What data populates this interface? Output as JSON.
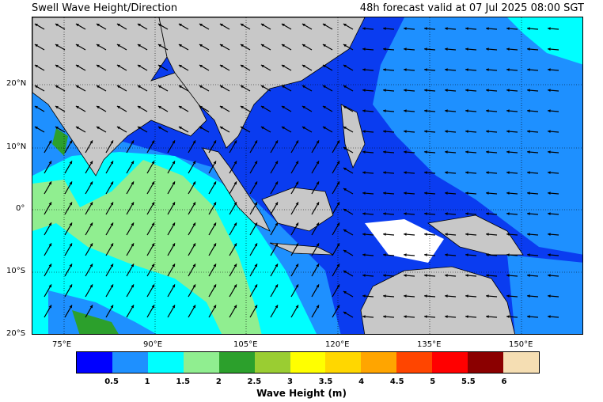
{
  "title_left": "Swell Wave Height/Direction",
  "title_right": "48h forecast valid at 07 Jul 2025 08:00 SGT",
  "map": {
    "lon_ticks": [
      "75°E",
      "90°E",
      "105°E",
      "120°E",
      "135°E",
      "150°E"
    ],
    "lat_ticks": [
      "20°N",
      "10°N",
      "0°",
      "10°S",
      "20°S"
    ],
    "land_color": "#c8c8c8",
    "grid": "dotted",
    "dominant_arrow_direction_indian_ocean": "north-east",
    "dominant_arrow_direction_pacific": "west"
  },
  "colorbar": {
    "title": "Wave Height (m)",
    "labels": [
      "0.5",
      "1",
      "1.5",
      "2",
      "2.5",
      "3",
      "3.5",
      "4",
      "4.5",
      "5",
      "5.5",
      "6"
    ],
    "colors": [
      "#0000ff",
      "#1e90ff",
      "#00ffff",
      "#90ee90",
      "#2ca02c",
      "#9acd32",
      "#ffff00",
      "#ffd700",
      "#ffa500",
      "#ff4500",
      "#ff0000",
      "#8b0000",
      "#f5deb3"
    ]
  }
}
